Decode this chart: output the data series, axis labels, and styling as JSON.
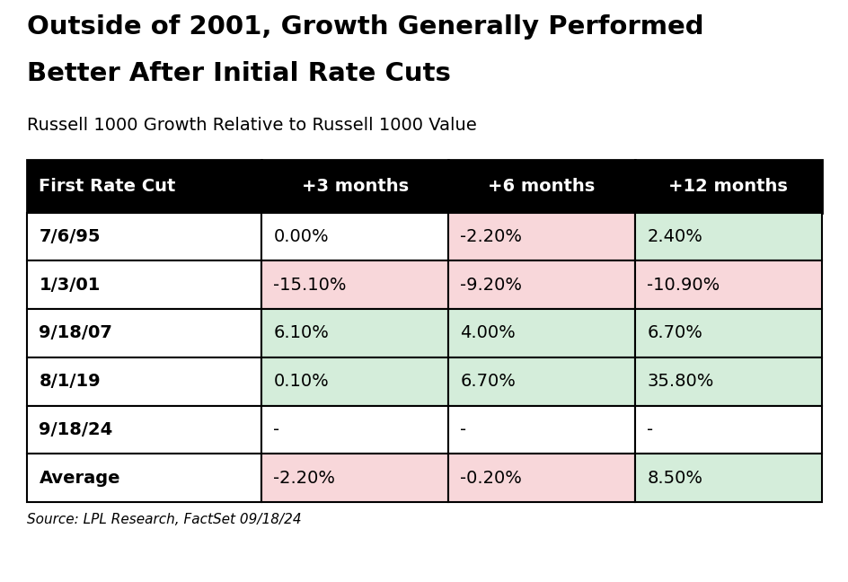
{
  "title_line1": "Outside of 2001, Growth Generally Performed",
  "title_line2": "Better After Initial Rate Cuts",
  "subtitle": "Russell 1000 Growth Relative to Russell 1000 Value",
  "source": "Source: LPL Research, FactSet 09/18/24",
  "col_headers": [
    "First Rate Cut",
    "+3 months",
    "+6 months",
    "+12 months"
  ],
  "rows": [
    [
      "7/6/95",
      "0.00%",
      "-2.20%",
      "2.40%"
    ],
    [
      "1/3/01",
      "-15.10%",
      "-9.20%",
      "-10.90%"
    ],
    [
      "9/18/07",
      "6.10%",
      "4.00%",
      "6.70%"
    ],
    [
      "8/1/19",
      "0.10%",
      "6.70%",
      "35.80%"
    ],
    [
      "9/18/24",
      "-",
      "-",
      "-"
    ],
    [
      "Average",
      "-2.20%",
      "-0.20%",
      "8.50%"
    ]
  ],
  "cell_colors": [
    [
      "#ffffff",
      "#ffffff",
      "#f8d7da",
      "#d4edda"
    ],
    [
      "#ffffff",
      "#f8d7da",
      "#f8d7da",
      "#f8d7da"
    ],
    [
      "#ffffff",
      "#d4edda",
      "#d4edda",
      "#d4edda"
    ],
    [
      "#ffffff",
      "#d4edda",
      "#d4edda",
      "#d4edda"
    ],
    [
      "#ffffff",
      "#ffffff",
      "#ffffff",
      "#ffffff"
    ],
    [
      "#ffffff",
      "#f8d7da",
      "#f8d7da",
      "#d4edda"
    ]
  ],
  "header_bg": "#000000",
  "header_fg": "#ffffff",
  "border_color": "#000000",
  "title_fontsize": 21,
  "subtitle_fontsize": 14,
  "header_fontsize": 14,
  "cell_fontsize": 14,
  "source_fontsize": 11
}
